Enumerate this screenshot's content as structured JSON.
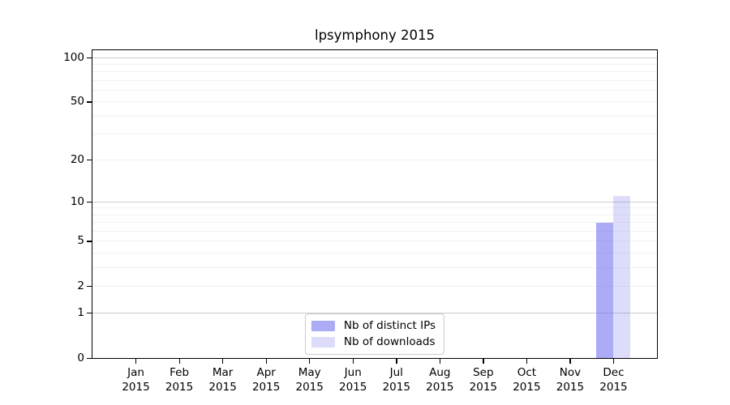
{
  "chart_data": {
    "type": "bar",
    "title": "lpsymphony 2015",
    "categories": [
      "Jan",
      "Feb",
      "Mar",
      "Apr",
      "May",
      "Jun",
      "Jul",
      "Aug",
      "Sep",
      "Oct",
      "Nov",
      "Dec"
    ],
    "category_year": "2015",
    "series": [
      {
        "name": "Nb of distinct IPs",
        "color": "#6666ee",
        "opacity": 0.55,
        "rendered_color": "#aaaaf2",
        "values": [
          0,
          0,
          0,
          0,
          0,
          0,
          0,
          0,
          0,
          0,
          0,
          7
        ]
      },
      {
        "name": "Nb of downloads",
        "color": "#6666ee",
        "opacity": 0.22,
        "rendered_color": "#dcdcf8",
        "values": [
          0,
          0,
          0,
          0,
          0,
          0,
          0,
          0,
          0,
          0,
          0,
          11
        ]
      }
    ],
    "xlabel": "",
    "ylabel": "",
    "yscale": "log1p",
    "ylim": [
      0,
      112
    ],
    "yticks": [
      100,
      50,
      20,
      10,
      5,
      2,
      1,
      0
    ],
    "gridlines": {
      "major": [
        1,
        10,
        100
      ],
      "minor": [
        2,
        3,
        4,
        5,
        6,
        7,
        8,
        9,
        20,
        30,
        40,
        50,
        60,
        70,
        80,
        90
      ]
    },
    "grid": true,
    "legend_position": "lower center"
  },
  "colors": {
    "background": "#ffffff",
    "axis": "#000000",
    "text": "#000000",
    "major_gridline": "#cdcdcd",
    "minor_gridline": "#f2f2f2",
    "legend_border": "#cccccc"
  }
}
